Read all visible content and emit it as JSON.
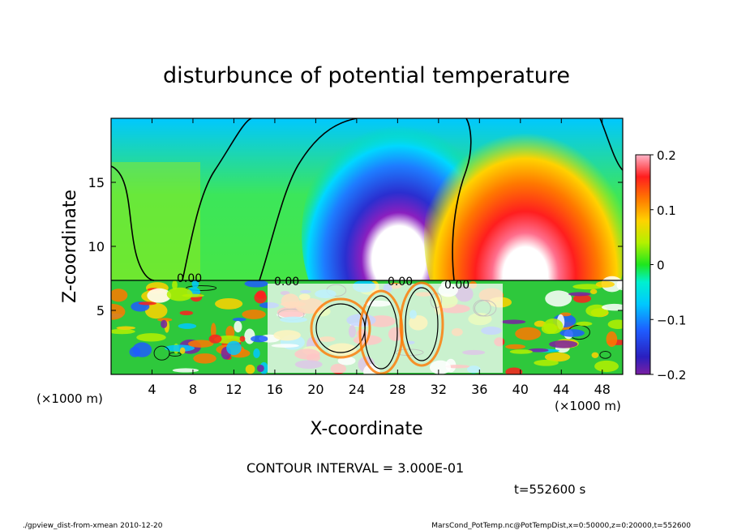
{
  "chart_data": {
    "type": "heatmap",
    "title": "disturbunce of potential temperature",
    "xlabel": "X-coordinate",
    "ylabel": "Z-coordinate",
    "x_unit_left": "(×1000 m)",
    "x_unit_right": "(×1000 m)",
    "xlim": [
      0,
      50
    ],
    "ylim": [
      0,
      20
    ],
    "x_ticks": [
      "4",
      "8",
      "12",
      "16",
      "20",
      "24",
      "28",
      "32",
      "36",
      "40",
      "44",
      "48"
    ],
    "y_ticks": [
      "5",
      "10",
      "15"
    ],
    "colorbar": {
      "range": [
        -0.2,
        0.2
      ],
      "ticks": [
        "0.2",
        "0.1",
        "0",
        "−0.1",
        "−0.2"
      ]
    },
    "contour_label": "0.00",
    "contour_interval_text": "CONTOUR INTERVAL = 3.000E-01",
    "time_text": "t=552600 s"
  },
  "footer": {
    "left": "./gpview_dist-from-xmean  2010-12-20",
    "right": "MarsCond_PotTemp.nc@PotTempDist,x=0:50000,z=0:20000,t=552600"
  }
}
